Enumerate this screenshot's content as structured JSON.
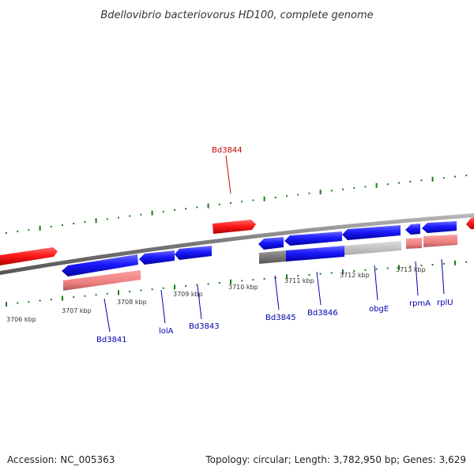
{
  "title": "Bdellovibrio bacteriovorus HD100, complete genome",
  "footer": {
    "accession": "Accession: NC_005363",
    "topology": "Topology: circular; Length: 3,782,950 bp; Genes: 3,629"
  },
  "colors": {
    "forward_gene": "#ff0000",
    "reverse_gene": "#0000ee",
    "rna_light": "#f08080",
    "grey_track": "#888888",
    "tick": "#1a7a1a",
    "backbone": "#777777"
  },
  "ticks": [
    "3706 kbp",
    "3707 kbp",
    "3708 kbp",
    "3709 kbp",
    "3710 kbp",
    "3711 kbp",
    "3712 kbp",
    "3713 kbp"
  ],
  "genes": [
    {
      "label": "Bd3841",
      "strand": "reverse"
    },
    {
      "label": "lolA",
      "strand": "reverse"
    },
    {
      "label": "Bd3843",
      "strand": "reverse"
    },
    {
      "label": "Bd3844",
      "strand": "forward"
    },
    {
      "label": "Bd3845",
      "strand": "reverse"
    },
    {
      "label": "Bd3846",
      "strand": "reverse"
    },
    {
      "label": "obgE",
      "strand": "reverse"
    },
    {
      "label": "rpmA",
      "strand": "reverse"
    },
    {
      "label": "rplU",
      "strand": "reverse"
    }
  ]
}
